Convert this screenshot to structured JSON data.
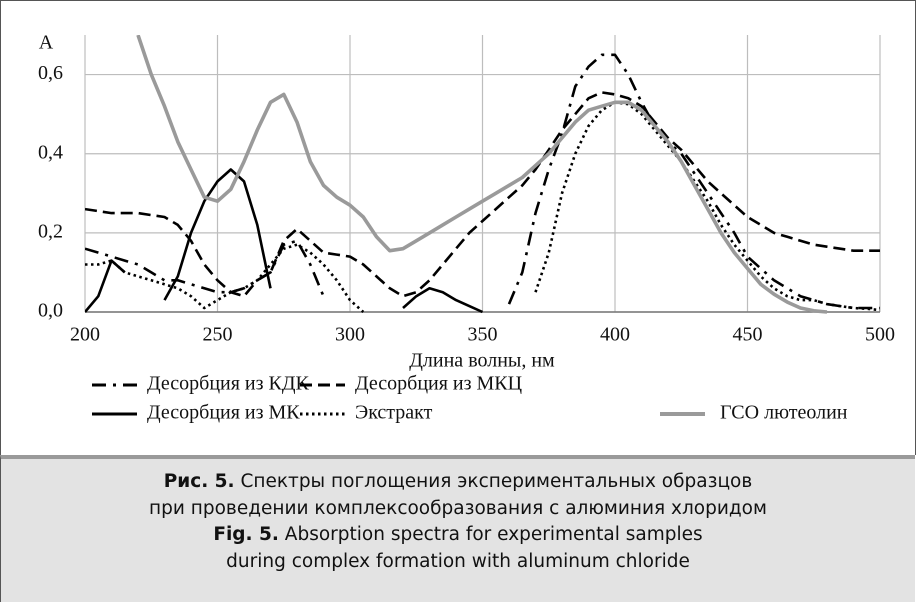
{
  "chart_data": {
    "type": "line",
    "y_label": "A",
    "x_label": "Длина волны, нм",
    "x": [
      200,
      205,
      210,
      215,
      220,
      225,
      230,
      235,
      240,
      245,
      250,
      255,
      260,
      265,
      270,
      275,
      280,
      285,
      290,
      295,
      300,
      305,
      310,
      315,
      320,
      325,
      330,
      335,
      340,
      345,
      350,
      355,
      360,
      365,
      370,
      375,
      380,
      385,
      390,
      395,
      400,
      405,
      410,
      415,
      420,
      425,
      430,
      435,
      440,
      445,
      450,
      455,
      460,
      465,
      470,
      475,
      480,
      485,
      490,
      495,
      500
    ],
    "xlim": [
      200,
      500
    ],
    "xticks": [
      200,
      250,
      300,
      350,
      400,
      450,
      500
    ],
    "ylim": [
      0,
      0.7
    ],
    "yticks": [
      {
        "value": 0,
        "label": "0,0"
      },
      {
        "value": 0.2,
        "label": "0,2"
      },
      {
        "value": 0.4,
        "label": "0,4"
      },
      {
        "value": 0.6,
        "label": "0,6"
      }
    ],
    "grid": true,
    "series": [
      {
        "name": "Десорбция из КДК",
        "color": "#000000",
        "style": "dashdot",
        "values": [
          0.16,
          0.15,
          0.14,
          0.13,
          0.12,
          0.1,
          0.08,
          0.08,
          0.07,
          0.06,
          0.05,
          0.05,
          0.06,
          0.08,
          0.1,
          0.17,
          0.18,
          0.12,
          0.04,
          null,
          null,
          null,
          null,
          null,
          null,
          null,
          null,
          null,
          null,
          null,
          null,
          null,
          0.02,
          0.1,
          0.25,
          0.36,
          0.45,
          0.57,
          0.62,
          0.65,
          0.65,
          0.6,
          0.53,
          0.47,
          0.43,
          0.4,
          0.35,
          0.3,
          0.25,
          0.2,
          0.14,
          0.11,
          0.08,
          0.06,
          0.04,
          0.03,
          0.02,
          0.015,
          0.01,
          0.01,
          0.01
        ]
      },
      {
        "name": "Десорбция из МКЦ",
        "color": "#000000",
        "style": "dash",
        "values": [
          0.26,
          0.255,
          0.25,
          0.25,
          0.25,
          0.245,
          0.24,
          0.22,
          0.18,
          0.12,
          0.08,
          0.05,
          0.04,
          0.08,
          0.1,
          0.18,
          0.21,
          0.18,
          0.15,
          0.145,
          0.14,
          0.12,
          0.09,
          0.06,
          0.04,
          0.05,
          0.08,
          0.12,
          0.16,
          0.2,
          0.23,
          0.26,
          0.29,
          0.32,
          0.36,
          0.41,
          0.46,
          0.5,
          0.54,
          0.555,
          0.55,
          0.54,
          0.52,
          0.48,
          0.44,
          0.41,
          0.37,
          0.33,
          0.3,
          0.27,
          0.24,
          0.22,
          0.2,
          0.19,
          0.18,
          0.17,
          0.165,
          0.16,
          0.155,
          0.155,
          0.155
        ]
      },
      {
        "name": "Десорбция из МК",
        "color": "#000000",
        "style": "solid",
        "values": [
          0,
          0.04,
          0.13,
          0.1,
          null,
          null,
          0.03,
          0.09,
          0.2,
          0.28,
          0.33,
          0.36,
          0.33,
          0.22,
          0.06,
          null,
          null,
          null,
          null,
          null,
          null,
          null,
          null,
          null,
          0.01,
          0.04,
          0.06,
          0.05,
          0.03,
          0.015,
          0,
          null,
          null,
          null,
          null,
          null,
          null,
          null,
          null,
          null,
          null,
          null,
          null,
          null,
          null,
          null,
          null,
          null,
          null,
          null,
          null,
          null,
          null,
          null,
          null,
          null,
          null,
          null,
          null,
          null,
          null
        ]
      },
      {
        "name": "Экстракт",
        "color": "#000000",
        "style": "dot",
        "values": [
          0.12,
          0.12,
          0.13,
          0.1,
          0.09,
          0.08,
          0.07,
          0.06,
          0.04,
          0.01,
          0.03,
          0.05,
          0.06,
          0.08,
          0.12,
          0.16,
          0.17,
          0.15,
          0.12,
          0.08,
          0.03,
          0,
          null,
          null,
          null,
          null,
          null,
          null,
          null,
          null,
          null,
          null,
          null,
          null,
          0.05,
          0.15,
          0.3,
          0.4,
          0.47,
          0.51,
          0.53,
          0.525,
          0.5,
          0.46,
          0.42,
          0.38,
          0.33,
          0.28,
          0.22,
          0.17,
          0.13,
          0.09,
          0.06,
          0.04,
          0.03,
          0.03,
          0.02,
          0.015,
          0.01,
          0.008,
          0.005
        ]
      },
      {
        "name": "ГСО лютеолин",
        "color": "#9a9a9a",
        "style": "solid",
        "values": [
          null,
          null,
          null,
          null,
          0.7,
          0.6,
          0.52,
          0.43,
          0.36,
          0.29,
          0.28,
          0.31,
          0.38,
          0.46,
          0.53,
          0.55,
          0.48,
          0.38,
          0.32,
          0.29,
          0.27,
          0.24,
          0.19,
          0.155,
          0.16,
          0.18,
          0.2,
          0.22,
          0.24,
          0.26,
          0.28,
          0.3,
          0.32,
          0.34,
          0.37,
          0.4,
          0.44,
          0.48,
          0.51,
          0.52,
          0.53,
          0.53,
          0.51,
          0.47,
          0.43,
          0.38,
          0.32,
          0.26,
          0.2,
          0.15,
          0.11,
          0.07,
          0.045,
          0.025,
          0.01,
          0.003,
          0,
          null,
          null,
          null,
          null
        ]
      }
    ]
  },
  "caption": [
    {
      "label": "Рис. 5.",
      "text": "Спектры поглощения экспериментальных образцов"
    },
    "при проведении комплексообразования с алюминия хлоридом",
    {
      "label": "Fig. 5.",
      "text": "Absorption spectra for experimental samples"
    },
    "during complex formation with aluminum chloride"
  ]
}
